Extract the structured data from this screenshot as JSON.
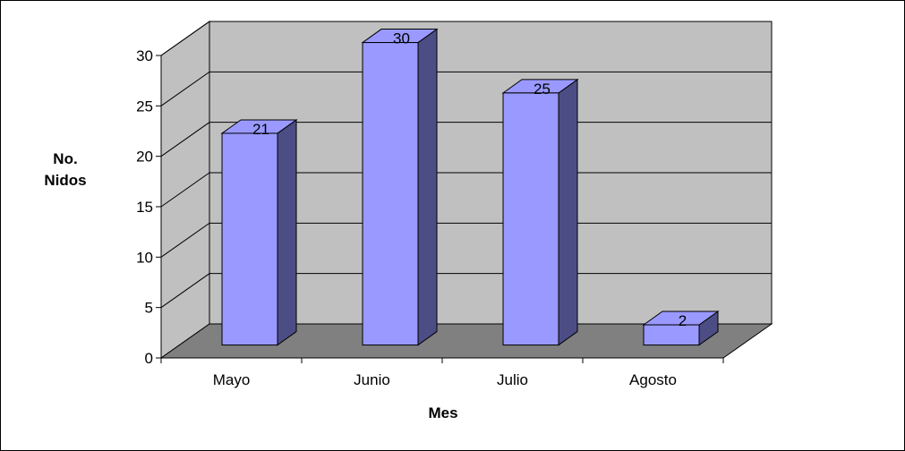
{
  "chart_data": {
    "type": "bar",
    "categories": [
      "Mayo",
      "Junio",
      "Julio",
      "Agosto"
    ],
    "values": [
      21,
      30,
      25,
      2
    ],
    "data_labels": [
      "21",
      "30",
      "25",
      "2"
    ],
    "title": "",
    "xlabel": "Mes",
    "ylabel": "No. Nidos",
    "ylabel_lines": [
      "No.",
      "Nidos"
    ],
    "ylim": [
      0,
      30
    ],
    "yticks": [
      0,
      5,
      10,
      15,
      20,
      25,
      30
    ],
    "ytick_labels": [
      "0",
      "5",
      "10",
      "15",
      "20",
      "25",
      "30"
    ],
    "grid": true,
    "legend": "none",
    "style": "3d-column",
    "colors": {
      "bar_front": "#9999ff",
      "bar_top": "#9999ff",
      "bar_side": "#4d4d85",
      "back_wall": "#c0c0c0",
      "side_wall": "#c0c0c0",
      "floor": "#808080",
      "outline": "#000000"
    }
  }
}
